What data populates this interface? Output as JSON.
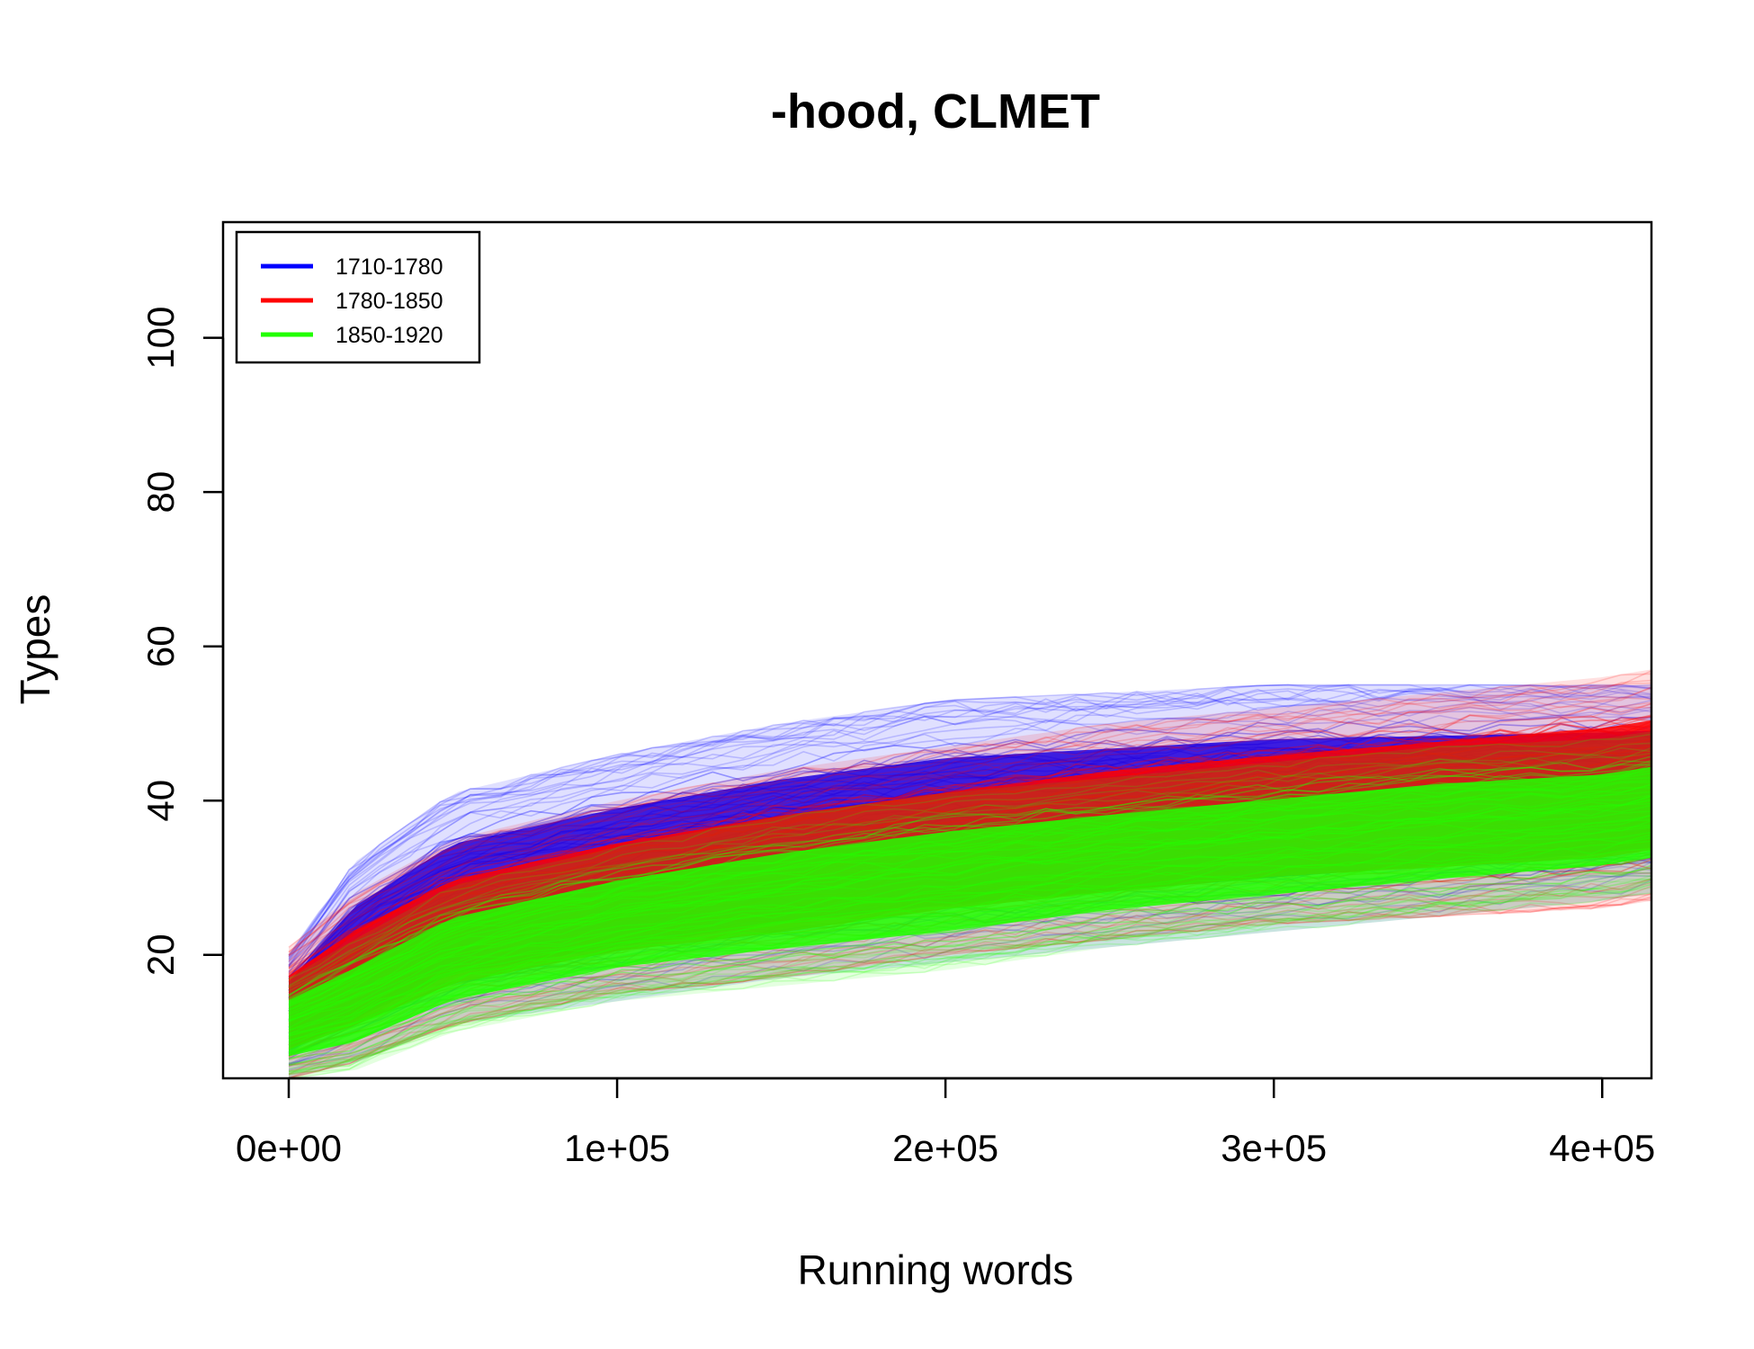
{
  "chart_data": {
    "type": "line",
    "title": "-hood, CLMET",
    "xlabel": "Running words",
    "ylabel": "Types",
    "xlim": [
      -20000,
      415000
    ],
    "ylim": [
      4,
      115
    ],
    "x_ticks": [
      0,
      100000,
      200000,
      300000,
      400000
    ],
    "x_tick_labels": [
      "0e+00",
      "1e+05",
      "2e+05",
      "3e+05",
      "4e+05"
    ],
    "y_ticks": [
      20,
      40,
      60,
      80,
      100
    ],
    "y_tick_labels": [
      "20",
      "40",
      "60",
      "80",
      "100"
    ],
    "legend_position": "top-left",
    "series": [
      {
        "name": "1710-1780",
        "color": "#0000ff",
        "band_x": [
          0,
          20000,
          50000,
          100000,
          150000,
          200000,
          250000,
          300000,
          350000,
          400000,
          415000
        ],
        "band_upper": [
          20,
          32,
          41,
          46,
          50,
          53,
          54,
          55,
          55,
          55,
          55
        ],
        "band_lower": [
          4,
          6,
          11,
          14,
          17,
          19,
          21,
          23,
          25,
          27,
          28
        ]
      },
      {
        "name": "1780-1850",
        "color": "#ff0000",
        "band_x": [
          0,
          20000,
          50000,
          100000,
          150000,
          200000,
          250000,
          300000,
          350000,
          400000,
          415000
        ],
        "band_upper": [
          21,
          28,
          35,
          40,
          44,
          47,
          50,
          52,
          54,
          56,
          57
        ],
        "band_lower": [
          4,
          6,
          11,
          15,
          17,
          20,
          22,
          24,
          25,
          26,
          27
        ]
      },
      {
        "name": "1850-1920",
        "color": "#22ff00",
        "band_x": [
          0,
          20000,
          50000,
          100000,
          150000,
          200000,
          250000,
          300000,
          350000,
          400000,
          415000
        ],
        "band_upper": [
          17,
          22,
          29,
          34,
          38,
          41,
          43,
          45,
          47,
          48,
          49
        ],
        "band_lower": [
          4,
          5,
          10,
          14,
          16,
          18,
          21,
          23,
          25,
          27,
          28
        ]
      }
    ]
  }
}
